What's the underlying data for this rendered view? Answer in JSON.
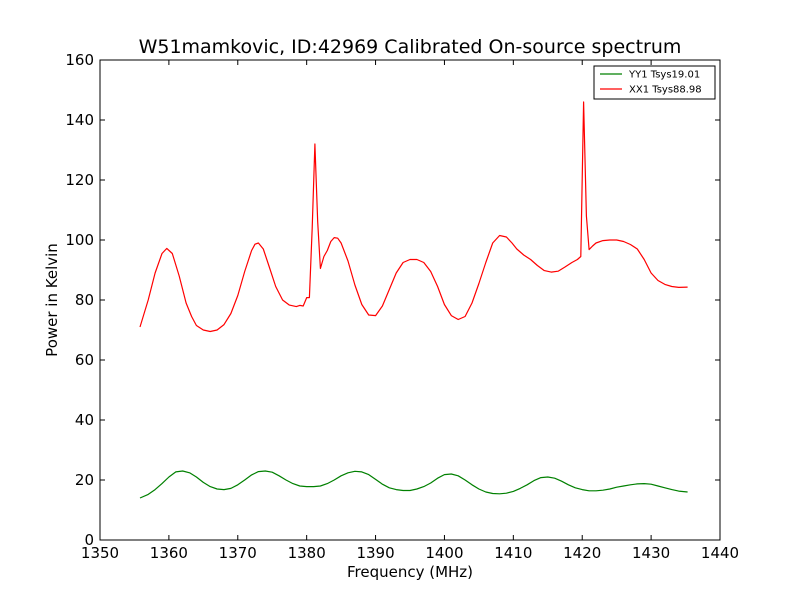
{
  "chart_data": {
    "type": "line",
    "title": "W51mamkovic, ID:42969 Calibrated On-source spectrum",
    "xlabel": "Frequency (MHz)",
    "ylabel": "Power in Kelvin",
    "xlim": [
      1350,
      1440
    ],
    "ylim": [
      0,
      160
    ],
    "xticks": [
      "1350",
      "1360",
      "1370",
      "1380",
      "1390",
      "1400",
      "1410",
      "1420",
      "1430",
      "1440"
    ],
    "yticks": [
      "0",
      "20",
      "40",
      "60",
      "80",
      "100",
      "120",
      "140",
      "160"
    ],
    "grid": false,
    "legend_position": "top-right",
    "series": [
      {
        "name": "YY1 Tsys19.01",
        "color": "#008000",
        "x": [
          1355.8,
          1357.0,
          1358.0,
          1359.0,
          1360.0,
          1361.0,
          1362.0,
          1363.0,
          1364.0,
          1365.0,
          1366.0,
          1367.0,
          1368.0,
          1369.0,
          1370.0,
          1371.0,
          1372.0,
          1373.0,
          1374.0,
          1375.0,
          1376.0,
          1377.0,
          1378.0,
          1379.0,
          1380.0,
          1381.0,
          1382.0,
          1383.0,
          1384.0,
          1385.0,
          1386.0,
          1387.0,
          1388.0,
          1389.0,
          1390.0,
          1391.0,
          1392.0,
          1393.0,
          1394.0,
          1395.0,
          1396.0,
          1397.0,
          1398.0,
          1399.0,
          1400.0,
          1401.0,
          1402.0,
          1403.0,
          1404.0,
          1405.0,
          1406.0,
          1407.0,
          1408.0,
          1409.0,
          1410.0,
          1411.0,
          1412.0,
          1413.0,
          1414.0,
          1415.0,
          1416.0,
          1417.0,
          1418.0,
          1419.0,
          1420.0,
          1421.0,
          1422.0,
          1423.0,
          1424.0,
          1425.0,
          1426.0,
          1427.0,
          1428.0,
          1429.0,
          1430.0,
          1431.0,
          1432.0,
          1433.0,
          1434.0,
          1435.3
        ],
        "y": [
          14.0,
          15.2,
          16.8,
          18.8,
          21.0,
          22.7,
          23.0,
          22.4,
          21.0,
          19.2,
          17.8,
          17.0,
          16.8,
          17.2,
          18.4,
          20.0,
          21.7,
          22.8,
          23.0,
          22.6,
          21.4,
          20.0,
          18.8,
          18.0,
          17.8,
          17.8,
          18.0,
          18.8,
          20.0,
          21.4,
          22.4,
          22.9,
          22.7,
          21.8,
          20.2,
          18.6,
          17.4,
          16.8,
          16.5,
          16.5,
          17.0,
          17.8,
          19.0,
          20.6,
          21.8,
          22.0,
          21.4,
          20.0,
          18.4,
          17.0,
          16.0,
          15.5,
          15.4,
          15.6,
          16.2,
          17.2,
          18.4,
          19.8,
          20.8,
          21.0,
          20.6,
          19.6,
          18.4,
          17.4,
          16.8,
          16.4,
          16.4,
          16.6,
          17.0,
          17.6,
          18.0,
          18.4,
          18.7,
          18.8,
          18.6,
          18.0,
          17.4,
          16.8,
          16.3,
          16.0
        ]
      },
      {
        "name": "XX1 Tsys88.98",
        "color": "#ff0000",
        "x": [
          1355.8,
          1357.0,
          1358.0,
          1359.0,
          1359.7,
          1360.5,
          1361.5,
          1362.5,
          1363.3,
          1364.0,
          1365.0,
          1366.0,
          1367.0,
          1368.0,
          1369.0,
          1370.0,
          1371.0,
          1372.0,
          1372.5,
          1373.0,
          1373.7,
          1374.5,
          1375.5,
          1376.5,
          1377.5,
          1378.5,
          1379.0,
          1379.5,
          1380.0,
          1380.4,
          1380.8,
          1381.2,
          1381.6,
          1382.0,
          1382.5,
          1383.0,
          1383.5,
          1384.0,
          1384.5,
          1385.0,
          1386.0,
          1387.0,
          1388.0,
          1389.0,
          1390.0,
          1391.0,
          1392.0,
          1393.0,
          1394.0,
          1395.0,
          1396.0,
          1397.0,
          1398.0,
          1399.0,
          1400.0,
          1401.0,
          1402.0,
          1403.0,
          1404.0,
          1405.0,
          1406.0,
          1407.0,
          1408.0,
          1409.0,
          1409.8,
          1410.5,
          1411.5,
          1412.5,
          1413.5,
          1414.5,
          1415.5,
          1416.5,
          1417.5,
          1418.5,
          1419.3,
          1419.8,
          1420.2,
          1420.6,
          1421.0,
          1421.5,
          1422.0,
          1423.0,
          1424.0,
          1425.0,
          1426.0,
          1427.0,
          1428.0,
          1429.0,
          1430.0,
          1431.0,
          1432.0,
          1433.0,
          1434.0,
          1435.3
        ],
        "y": [
          71.0,
          80.0,
          89.0,
          95.5,
          97.2,
          95.5,
          88.0,
          79.0,
          74.5,
          71.5,
          70.0,
          69.5,
          70.0,
          71.8,
          75.5,
          81.5,
          89.5,
          96.5,
          98.6,
          99.0,
          97.0,
          91.5,
          84.5,
          80.0,
          78.3,
          77.8,
          78.2,
          78.0,
          80.8,
          80.8,
          104.0,
          132.0,
          106.0,
          90.5,
          94.5,
          96.5,
          99.5,
          100.8,
          100.6,
          99.0,
          93.0,
          85.0,
          78.5,
          75.0,
          74.8,
          78.0,
          83.5,
          89.0,
          92.5,
          93.5,
          93.5,
          92.5,
          89.5,
          84.5,
          78.5,
          74.8,
          73.5,
          74.5,
          79.0,
          85.5,
          92.5,
          99.0,
          101.5,
          101.0,
          99.0,
          97.0,
          95.0,
          93.5,
          91.5,
          89.8,
          89.3,
          89.6,
          91.0,
          92.5,
          93.5,
          94.5,
          146.0,
          108.0,
          96.8,
          98.0,
          99.0,
          99.8,
          100.0,
          100.0,
          99.5,
          98.5,
          97.0,
          93.5,
          89.0,
          86.5,
          85.2,
          84.5,
          84.2,
          84.3
        ]
      }
    ]
  }
}
